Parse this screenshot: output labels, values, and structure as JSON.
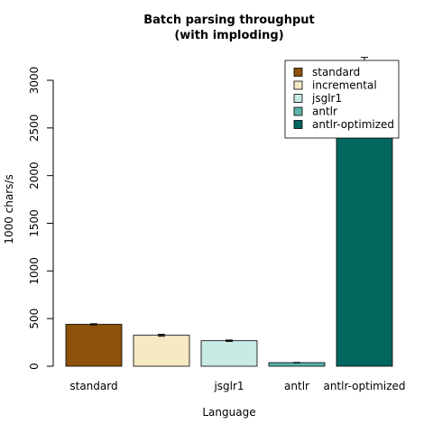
{
  "chart_data": {
    "type": "bar",
    "title_lines": [
      "Batch parsing throughput",
      "(with imploding)"
    ],
    "xlabel": "Language",
    "ylabel": "1000 chars/s",
    "ylim": [
      0,
      3000
    ],
    "yticks": [
      0,
      500,
      1000,
      1500,
      2000,
      2500,
      3000
    ],
    "categories": [
      "standard",
      "incremental",
      "jsglr1",
      "antlr",
      "antlr-optimized"
    ],
    "category_tick_labels": [
      "standard",
      "",
      "jsglr1",
      "antlr",
      "antlr-optimized"
    ],
    "values": [
      440,
      325,
      268,
      38,
      3180
    ],
    "errors": [
      6,
      10,
      7,
      2,
      60
    ],
    "colors": [
      "#8c510a",
      "#f6e8c3",
      "#c7eae5",
      "#5ab4ac",
      "#01665e"
    ],
    "legend": {
      "placement": "top-right",
      "entries": [
        "standard",
        "incremental",
        "jsglr1",
        "antlr",
        "antlr-optimized"
      ]
    },
    "grid": false
  }
}
